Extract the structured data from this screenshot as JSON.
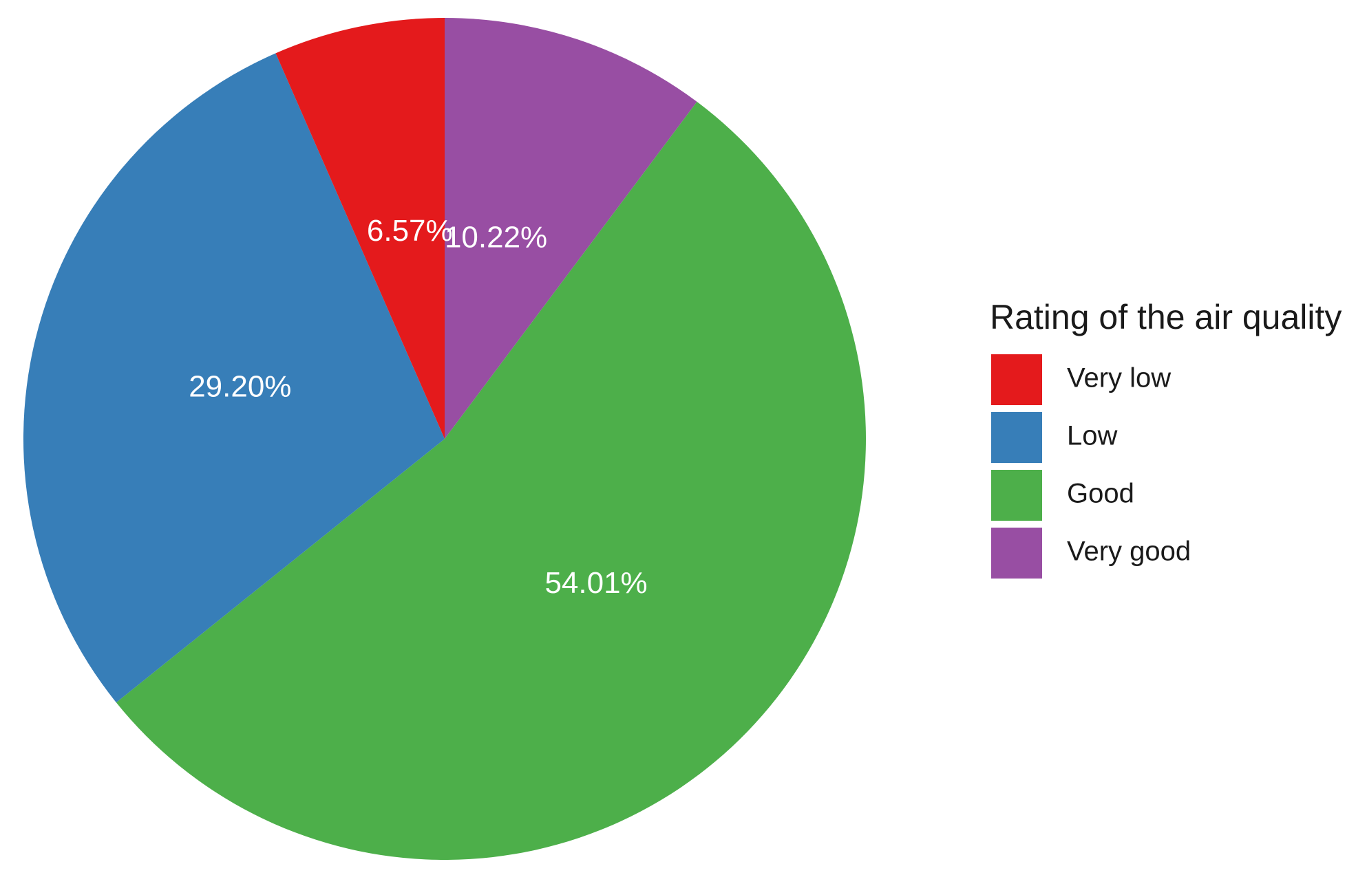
{
  "chart_data": {
    "type": "pie",
    "legend_title": "Rating of the air quality",
    "legend_position": "right",
    "start_angle": "top, clockwise",
    "slices": [
      {
        "label": "Very good",
        "value": 10.22,
        "value_label": "10.22%",
        "color": "#984ea3"
      },
      {
        "label": "Good",
        "value": 54.01,
        "value_label": "54.01%",
        "color": "#4daf4a"
      },
      {
        "label": "Low",
        "value": 29.2,
        "value_label": "29.20%",
        "color": "#377eb8"
      },
      {
        "label": "Very low",
        "value": 6.57,
        "value_label": "6.57%",
        "color": "#e41a1c"
      }
    ],
    "legend_order": [
      "Very low",
      "Low",
      "Good",
      "Very good"
    ]
  }
}
